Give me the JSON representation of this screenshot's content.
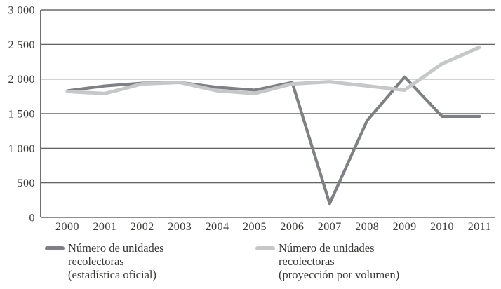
{
  "figure": {
    "background": "#ffffff",
    "text_color": "#3a3836",
    "gridline_color": "#4c4c4c",
    "axis_color": "#4c4c4c"
  },
  "chart_data": {
    "type": "line",
    "title": "",
    "xlabel": "",
    "ylabel": "",
    "x_labels": [
      "2000",
      "2001",
      "2002",
      "2003",
      "2004",
      "2005",
      "2006",
      "2007",
      "2008",
      "2009",
      "2010",
      "2011"
    ],
    "ylim": [
      0,
      3000
    ],
    "y_ticks": [
      {
        "value": 3000,
        "label": "3 000"
      },
      {
        "value": 2500,
        "label": "2 500"
      },
      {
        "value": 2000,
        "label": "2 000"
      },
      {
        "value": 1500,
        "label": "1 500"
      },
      {
        "value": 1000,
        "label": "1 000"
      },
      {
        "value": 500,
        "label": "500"
      },
      {
        "value": 0,
        "label": "0"
      }
    ],
    "grid": "horizontal",
    "legend_position": "bottom",
    "series": [
      {
        "name": "Número de unidades recolectoras (estadística oficial)",
        "color": "#7e8083",
        "stroke_width": 4.2,
        "values": [
          1830,
          1900,
          1940,
          1950,
          1880,
          1840,
          1950,
          200,
          1400,
          2030,
          1460,
          1460
        ]
      },
      {
        "name": "Número de unidades recolectoras (proyección por volumen)",
        "color": "#c5c7c9",
        "stroke_width": 5,
        "values": [
          1820,
          1790,
          1930,
          1950,
          1830,
          1790,
          1930,
          1960,
          1900,
          1840,
          2220,
          2460
        ]
      }
    ]
  },
  "legend": {
    "items": [
      {
        "id": "official",
        "label": "Número de unidades\nrecolectoras\n(estadística oficial)",
        "color": "#7e8083"
      },
      {
        "id": "projection",
        "label": "Número de unidades\nrecolectoras\n(proyección por volumen)",
        "color": "#c5c7c9"
      }
    ]
  }
}
